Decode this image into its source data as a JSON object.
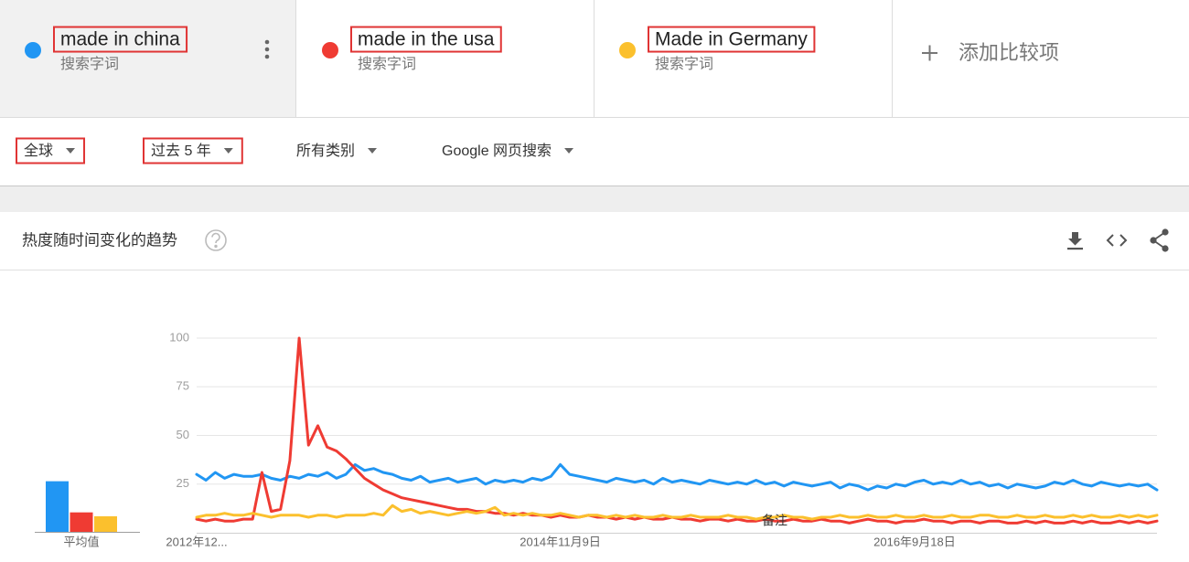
{
  "terms": [
    {
      "kind": "搜索字词"
    },
    {
      "kind": "搜索字词"
    },
    {
      "kind": "搜索字词"
    }
  ],
  "add_compare": "添加比较项",
  "filters": [
    "全球",
    "过去 5 年",
    "所有类别",
    "Google 网页搜索"
  ],
  "card_title": "热度随时间变化的趋势",
  "chart_data": [
    {
      "type": "line",
      "categories": [
        "2012年12...",
        null,
        null,
        null,
        null,
        null,
        null,
        null,
        null,
        null,
        null,
        null,
        null,
        null,
        null,
        null,
        null,
        null,
        null,
        null,
        null,
        null,
        null,
        null,
        null,
        null,
        null,
        null,
        null,
        null,
        null,
        null,
        null,
        null,
        null,
        null,
        null,
        null,
        null,
        "2014年11月9日",
        null,
        null,
        null,
        null,
        null,
        null,
        null,
        null,
        null,
        null,
        null,
        null,
        null,
        null,
        null,
        null,
        null,
        null,
        null,
        null,
        null,
        null,
        null,
        null,
        null,
        null,
        null,
        null,
        null,
        null,
        null,
        null,
        null,
        null,
        null,
        null,
        null,
        "2016年9月18日",
        null,
        null,
        null,
        null,
        null,
        null,
        null,
        null,
        null,
        null,
        null,
        null,
        null,
        null,
        null,
        null,
        null,
        null,
        null,
        null,
        null,
        null,
        null,
        null,
        null,
        null
      ],
      "series": [
        {
          "name": "made in china",
          "color": "#2196f3",
          "values": [
            30,
            27,
            31,
            28,
            30,
            29,
            29,
            30,
            28,
            27,
            29,
            28,
            30,
            29,
            31,
            28,
            30,
            35,
            32,
            33,
            31,
            30,
            28,
            27,
            29,
            26,
            27,
            28,
            26,
            27,
            28,
            25,
            27,
            26,
            27,
            26,
            28,
            27,
            29,
            35,
            30,
            29,
            28,
            27,
            26,
            28,
            27,
            26,
            27,
            25,
            28,
            26,
            27,
            26,
            25,
            27,
            26,
            25,
            26,
            25,
            27,
            25,
            26,
            24,
            26,
            25,
            24,
            25,
            26,
            23,
            25,
            24,
            22,
            24,
            23,
            25,
            24,
            26,
            27,
            25,
            26,
            25,
            27,
            25,
            26,
            24,
            25,
            23,
            25,
            24,
            23,
            24,
            26,
            25,
            27,
            25,
            24,
            26,
            25,
            24,
            25,
            24,
            25,
            22
          ]
        },
        {
          "name": "made in the usa",
          "color": "#ef3b33",
          "values": [
            7,
            6,
            7,
            6,
            6,
            7,
            7,
            31,
            11,
            12,
            37,
            100,
            45,
            55,
            44,
            42,
            38,
            33,
            28,
            25,
            22,
            20,
            18,
            17,
            16,
            15,
            14,
            13,
            12,
            12,
            11,
            11,
            10,
            10,
            9,
            10,
            9,
            9,
            8,
            9,
            8,
            8,
            9,
            8,
            8,
            7,
            8,
            7,
            8,
            7,
            7,
            8,
            7,
            7,
            6,
            7,
            7,
            6,
            7,
            6,
            6,
            7,
            6,
            6,
            7,
            6,
            6,
            7,
            6,
            6,
            5,
            6,
            7,
            6,
            6,
            5,
            6,
            6,
            7,
            6,
            6,
            5,
            6,
            6,
            5,
            6,
            6,
            5,
            5,
            6,
            5,
            6,
            5,
            5,
            6,
            5,
            6,
            5,
            5,
            6,
            5,
            6,
            5,
            6
          ]
        },
        {
          "name": "Made in Germany",
          "color": "#fbc02d",
          "values": [
            8,
            9,
            9,
            10,
            9,
            9,
            10,
            9,
            8,
            9,
            9,
            9,
            8,
            9,
            9,
            8,
            9,
            9,
            9,
            10,
            9,
            14,
            11,
            12,
            10,
            11,
            10,
            9,
            10,
            11,
            10,
            11,
            13,
            9,
            10,
            9,
            10,
            9,
            9,
            10,
            9,
            8,
            9,
            9,
            8,
            9,
            8,
            9,
            8,
            8,
            9,
            8,
            8,
            9,
            8,
            8,
            8,
            9,
            8,
            8,
            7,
            8,
            8,
            9,
            8,
            8,
            7,
            8,
            8,
            9,
            8,
            8,
            9,
            8,
            8,
            9,
            8,
            8,
            9,
            8,
            8,
            9,
            8,
            8,
            9,
            9,
            8,
            8,
            9,
            8,
            8,
            9,
            8,
            8,
            9,
            8,
            9,
            8,
            8,
            9,
            8,
            9,
            8,
            9
          ]
        }
      ],
      "ylim": [
        0,
        100
      ],
      "yticks": [
        25,
        50,
        75,
        100
      ],
      "grid": true,
      "annotation": "备注"
    },
    {
      "type": "bar",
      "categories": [
        "平均值"
      ],
      "series": [
        {
          "color": "#2196f3",
          "values": [
            26
          ]
        },
        {
          "color": "#ef3b33",
          "values": [
            10
          ]
        },
        {
          "color": "#fbc02d",
          "values": [
            8
          ]
        }
      ],
      "ylim": [
        0,
        100
      ]
    }
  ]
}
